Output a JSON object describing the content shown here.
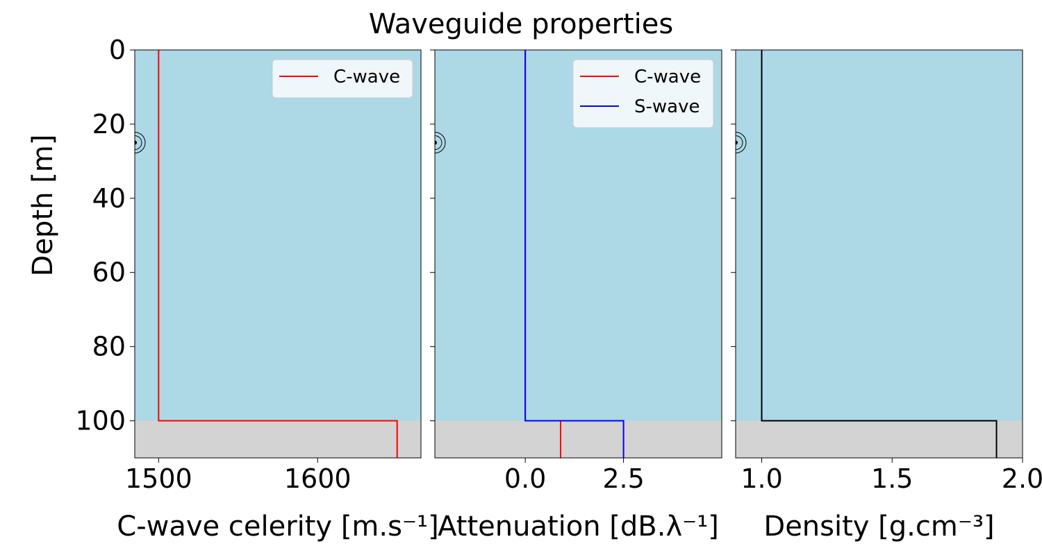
{
  "figure": {
    "title": "Waveguide properties"
  },
  "colors": {
    "water": "#add8e6",
    "seabed": "#d3d3d3",
    "c_wave": "#ff0000",
    "s_wave": "#0000ff",
    "density": "#000000"
  },
  "chart_data": [
    {
      "type": "line",
      "title": "",
      "xlabel": "C-wave celerity [m.s⁻¹]",
      "ylabel": "Depth [m]",
      "xlim": [
        1485,
        1665
      ],
      "ylim": [
        110,
        0
      ],
      "y_inverted": true,
      "xticks": [
        1500,
        1600
      ],
      "xtick_labels": [
        "1500",
        "1600"
      ],
      "yticks": [
        0,
        20,
        40,
        60,
        80,
        100
      ],
      "ytick_labels": [
        "0",
        "20",
        "40",
        "60",
        "80",
        "100"
      ],
      "water_depth": 100,
      "source_depth": 25,
      "legend": "top-right",
      "series": [
        {
          "name": "C-wave",
          "color": "#ff0000",
          "points": [
            [
              1500,
              0
            ],
            [
              1500,
              100
            ],
            [
              1650,
              100
            ],
            [
              1650,
              110
            ]
          ]
        }
      ]
    },
    {
      "type": "line",
      "title": "",
      "xlabel": "Attenuation [dB.λ⁻¹]",
      "ylabel": "",
      "xlim": [
        -2.3,
        5.0
      ],
      "ylim": [
        110,
        0
      ],
      "y_inverted": true,
      "xticks": [
        0.0,
        2.5
      ],
      "xtick_labels": [
        "0.0",
        "2.5"
      ],
      "yticks": [
        0,
        20,
        40,
        60,
        80,
        100
      ],
      "ytick_labels": [],
      "water_depth": 100,
      "source_depth": 25,
      "legend": "top-right",
      "series": [
        {
          "name": "C-wave",
          "color": "#ff0000",
          "points": [
            [
              0,
              0
            ],
            [
              0,
              100
            ],
            [
              0.9,
              100
            ],
            [
              0.9,
              110
            ]
          ]
        },
        {
          "name": "S-wave",
          "color": "#0000ff",
          "points": [
            [
              0,
              0
            ],
            [
              0,
              100
            ],
            [
              2.5,
              100
            ],
            [
              2.5,
              110
            ]
          ]
        }
      ]
    },
    {
      "type": "line",
      "title": "",
      "xlabel": "Density [g.cm⁻³]",
      "ylabel": "",
      "xlim": [
        0.9,
        2.0
      ],
      "ylim": [
        110,
        0
      ],
      "y_inverted": true,
      "xticks": [
        1.0,
        1.5,
        2.0
      ],
      "xtick_labels": [
        "1.0",
        "1.5",
        "2.0"
      ],
      "yticks": [
        0,
        20,
        40,
        60,
        80,
        100
      ],
      "ytick_labels": [],
      "water_depth": 100,
      "source_depth": 25,
      "legend": "none",
      "series": [
        {
          "name": "",
          "color": "#000000",
          "points": [
            [
              1.0,
              0
            ],
            [
              1.0,
              100
            ],
            [
              1.9,
              100
            ],
            [
              1.9,
              110
            ]
          ]
        }
      ]
    }
  ]
}
